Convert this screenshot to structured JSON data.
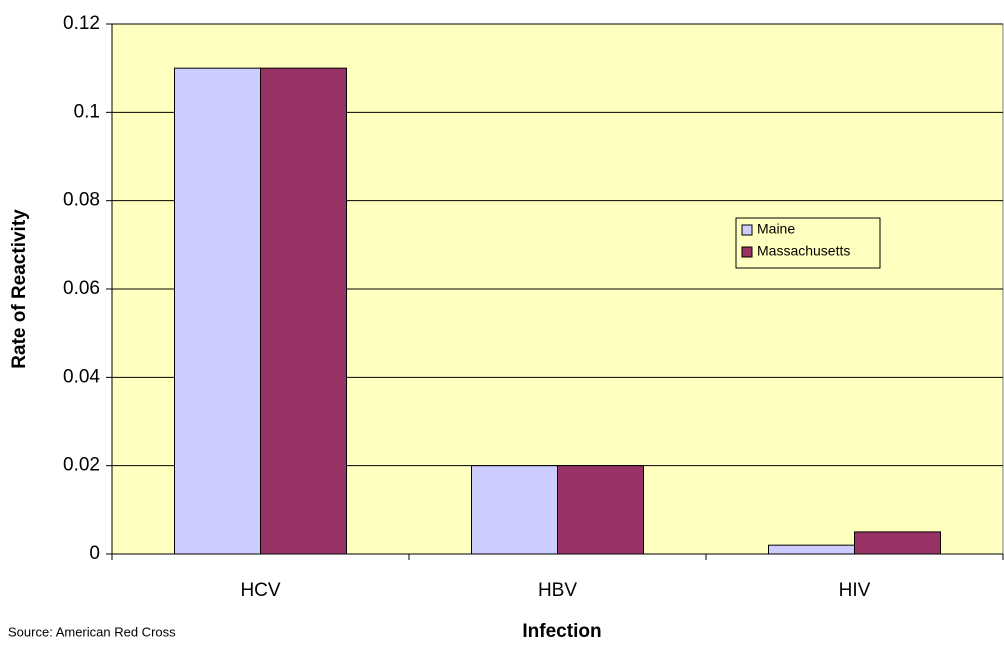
{
  "chart_data": {
    "type": "bar",
    "x_label": "Infection",
    "y_label": "Rate of Reactivity",
    "source": "Source: American Red Cross",
    "categories": [
      "HCV",
      "HBV",
      "HIV"
    ],
    "series": [
      {
        "name": "Maine",
        "color": "#ccccff",
        "values": [
          0.11,
          0.02,
          0.002
        ]
      },
      {
        "name": "Massachusetts",
        "color": "#993366",
        "values": [
          0.11,
          0.02,
          0.005
        ]
      }
    ],
    "ylim": [
      0,
      0.12
    ],
    "yticks": [
      0,
      0.02,
      0.04,
      0.06,
      0.08,
      0.1,
      0.12
    ],
    "grid": true,
    "background": "#ffffc0"
  }
}
